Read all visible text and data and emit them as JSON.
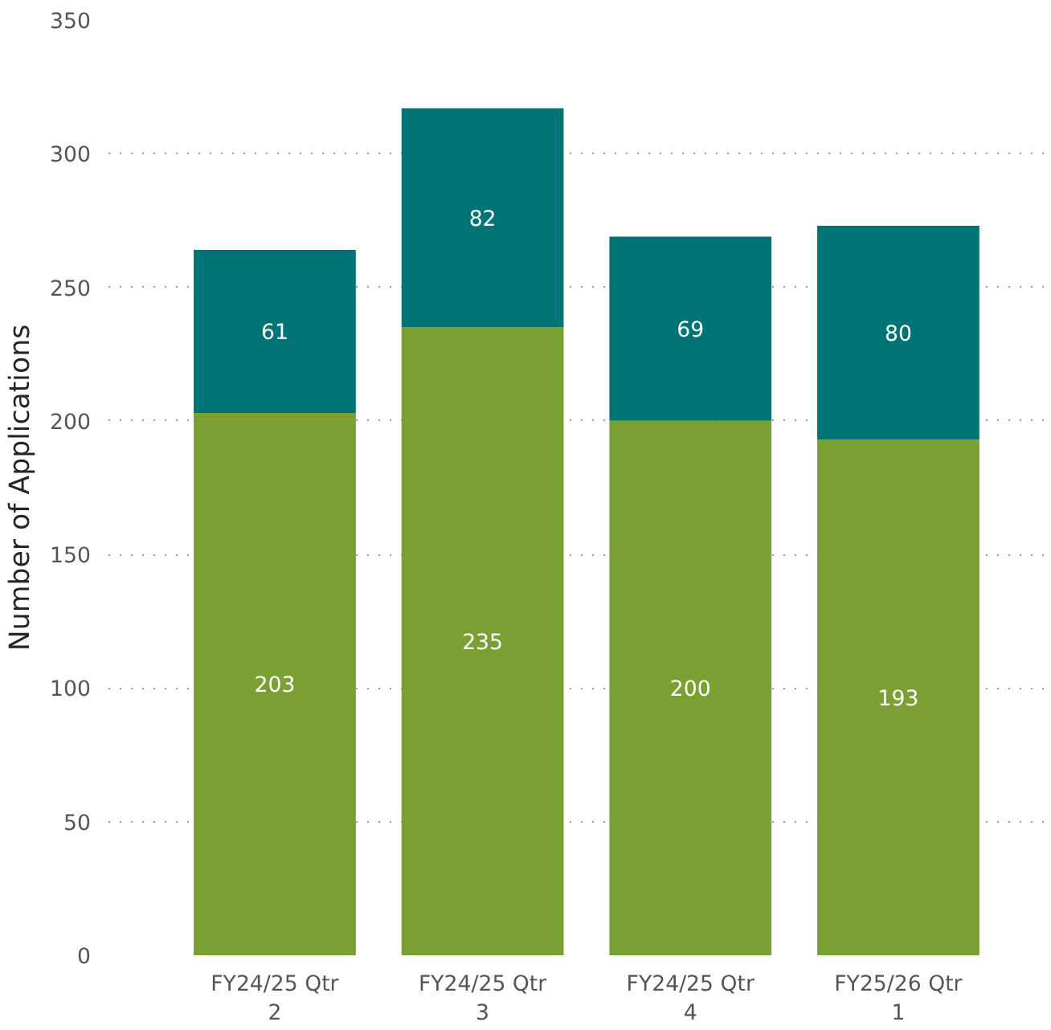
{
  "chart_data": {
    "type": "bar",
    "stacked": true,
    "ylabel": "Number of Applications",
    "categories": [
      "FY24/25 Qtr 2",
      "FY24/25 Qtr 3",
      "FY24/25 Qtr 4",
      "FY25/26 Qtr 1"
    ],
    "series": [
      {
        "color": "#7aa033",
        "values": [
          203,
          235,
          200,
          193
        ]
      },
      {
        "color": "#007377",
        "values": [
          61,
          82,
          69,
          80
        ]
      }
    ],
    "ylim": [
      0,
      350
    ],
    "yticks": [
      0,
      50,
      100,
      150,
      200,
      250,
      300,
      350
    ],
    "grid": "y",
    "data_labels": true
  }
}
